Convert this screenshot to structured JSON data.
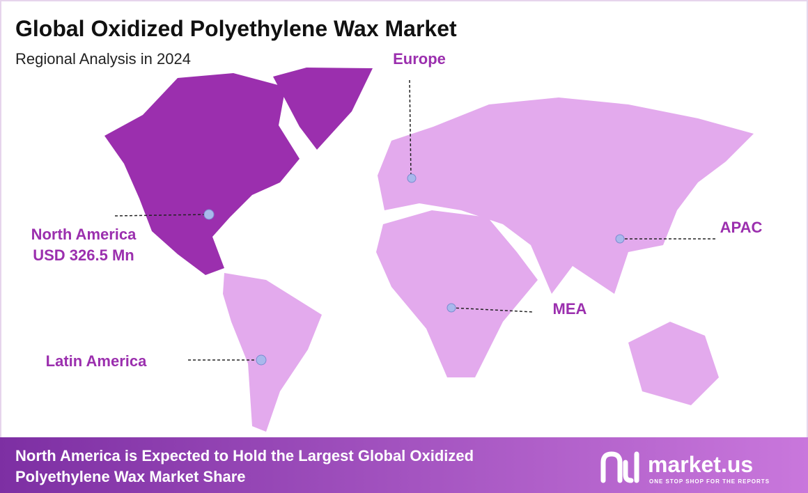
{
  "header": {
    "title": "Global Oxidized Polyethylene Wax Market",
    "subtitle": "Regional Analysis in 2024"
  },
  "regions": [
    {
      "label": "Europe"
    },
    {
      "label": "North America",
      "value": "USD 326.5 Mn"
    },
    {
      "label": "APAC"
    },
    {
      "label": "MEA"
    },
    {
      "label": "Latin America"
    }
  ],
  "footer": {
    "lines": [
      "North America is Expected to Hold the Largest Global Oxidized",
      "Polyethylene Wax Market Share"
    ],
    "brand": "market.us",
    "tagline": "ONE STOP SHOP FOR THE REPORTS"
  }
}
